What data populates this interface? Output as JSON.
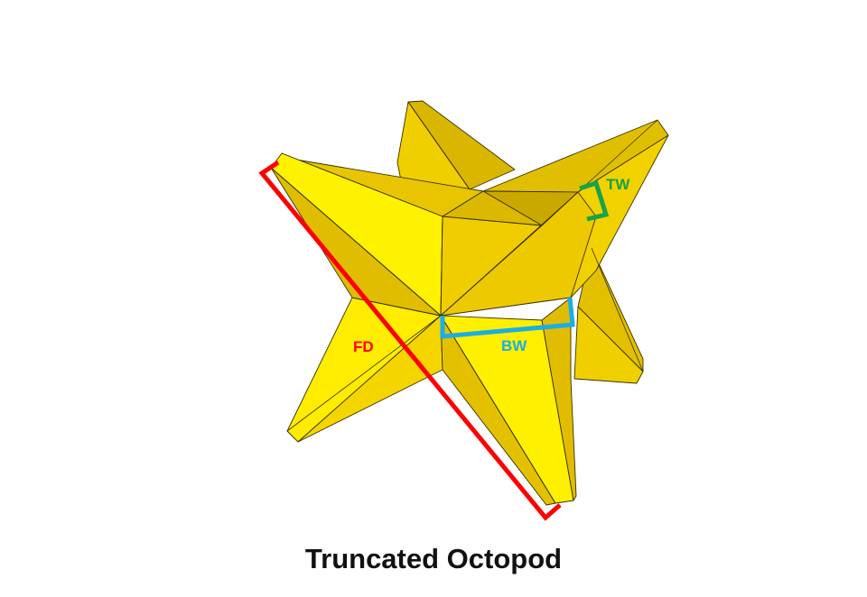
{
  "title": "Truncated Octopod",
  "labels": {
    "fd": "FD",
    "bw": "BW",
    "tw": "TW"
  },
  "colors": {
    "yellow_light": "#fff200",
    "yellow_mid": "#f2d400",
    "yellow_dark": "#e6c200",
    "yellow_shadow": "#c9a800",
    "fd_color": "#ff0000",
    "bw_color": "#1aaee6",
    "tw_color": "#16a34a"
  }
}
